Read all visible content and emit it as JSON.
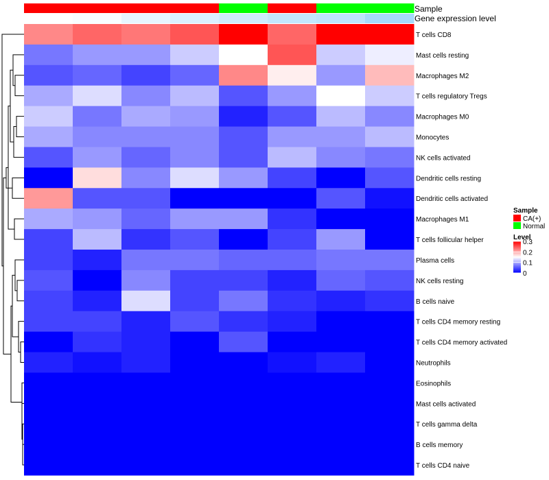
{
  "chart_data": {
    "type": "heatmap",
    "annotation_rows": [
      {
        "label": "Sample",
        "values": [
          "CA(+)",
          "CA(+)",
          "CA(+)",
          "CA(+)",
          "Normal",
          "CA(+)",
          "Normal",
          "Normal"
        ]
      },
      {
        "label": "Gene expression level",
        "values": [
          0.0,
          0.05,
          0.2,
          0.3,
          0.4,
          0.5,
          0.55,
          0.75
        ]
      }
    ],
    "row_labels": [
      "T cells CD8",
      "Mast cells resting",
      "Macrophages M2",
      "T cells regulatory  Tregs",
      "Macrophages M0",
      "Monocytes",
      "NK cells activated",
      "Dendritic cells resting",
      "Dendritic cells activated",
      "Macrophages M1",
      "T cells follicular helper",
      "Plasma cells",
      "NK cells resting",
      "B cells naive",
      "T cells CD4 memory resting",
      "T cells CD4 memory activated",
      "Neutrophils",
      "Eosinophils",
      "Mast cells activated",
      "T cells gamma delta",
      "B cells memory",
      "T cells CD4 naive"
    ],
    "n_columns": 8,
    "values": [
      [
        0.22,
        0.24,
        0.23,
        0.25,
        0.3,
        0.24,
        0.3,
        0.3
      ],
      [
        0.07,
        0.09,
        0.09,
        0.12,
        0.15,
        0.25,
        0.12,
        0.14
      ],
      [
        0.05,
        0.06,
        0.04,
        0.06,
        0.22,
        0.16,
        0.09,
        0.19
      ],
      [
        0.1,
        0.13,
        0.08,
        0.11,
        0.05,
        0.09,
        0.15,
        0.12
      ],
      [
        0.12,
        0.07,
        0.1,
        0.09,
        0.02,
        0.05,
        0.11,
        0.08
      ],
      [
        0.1,
        0.08,
        0.08,
        0.08,
        0.05,
        0.09,
        0.09,
        0.11
      ],
      [
        0.05,
        0.09,
        0.06,
        0.08,
        0.05,
        0.11,
        0.08,
        0.07
      ],
      [
        0.0,
        0.17,
        0.08,
        0.13,
        0.09,
        0.04,
        0.0,
        0.05
      ],
      [
        0.21,
        0.05,
        0.05,
        0.0,
        0.0,
        0.0,
        0.05,
        0.01
      ],
      [
        0.1,
        0.09,
        0.06,
        0.09,
        0.09,
        0.03,
        0.0,
        0.0
      ],
      [
        0.04,
        0.11,
        0.03,
        0.05,
        0.0,
        0.04,
        0.09,
        0.0
      ],
      [
        0.04,
        0.02,
        0.07,
        0.07,
        0.06,
        0.06,
        0.07,
        0.07
      ],
      [
        0.05,
        0.0,
        0.08,
        0.04,
        0.04,
        0.02,
        0.06,
        0.05
      ],
      [
        0.04,
        0.02,
        0.13,
        0.04,
        0.07,
        0.03,
        0.02,
        0.03
      ],
      [
        0.04,
        0.04,
        0.02,
        0.05,
        0.03,
        0.02,
        0.0,
        0.0
      ],
      [
        0.0,
        0.03,
        0.02,
        0.0,
        0.05,
        0.0,
        0.0,
        0.0
      ],
      [
        0.02,
        0.01,
        0.02,
        0.0,
        0.0,
        0.01,
        0.02,
        0.0
      ],
      [
        0.0,
        0.0,
        0.0,
        0.0,
        0.0,
        0.0,
        0.0,
        0.0
      ],
      [
        0.0,
        0.0,
        0.0,
        0.0,
        0.0,
        0.0,
        0.0,
        0.0
      ],
      [
        0.0,
        0.0,
        0.0,
        0.0,
        0.0,
        0.0,
        0.0,
        0.0
      ],
      [
        0.0,
        0.0,
        0.0,
        0.0,
        0.0,
        0.0,
        0.0,
        0.0
      ],
      [
        0.0,
        0.0,
        0.0,
        0.0,
        0.0,
        0.0,
        0.0,
        0.0
      ]
    ],
    "color_scale": {
      "min": 0,
      "mid": 0.15,
      "max": 0.3,
      "low": "#0000ff",
      "midcolor": "#ffffff",
      "high": "#ff0000"
    },
    "annotation_colors": {
      "CA(+)": "#ff0000",
      "Normal": "#00ff00",
      "expr_low": "#ffffff",
      "expr_high": "#87cefa"
    },
    "legend": {
      "sample_title": "Sample",
      "sample_items": [
        {
          "label": "CA(+)",
          "color": "#ff0000"
        },
        {
          "label": "Normal",
          "color": "#00ff00"
        }
      ],
      "level_title": "Level",
      "level_ticks": [
        "0.3",
        "0.2",
        "0.1",
        "0"
      ],
      "level_tick_values": [
        0.3,
        0.2,
        0.1,
        0
      ]
    },
    "dendrogram": "row clustering tree on left"
  }
}
